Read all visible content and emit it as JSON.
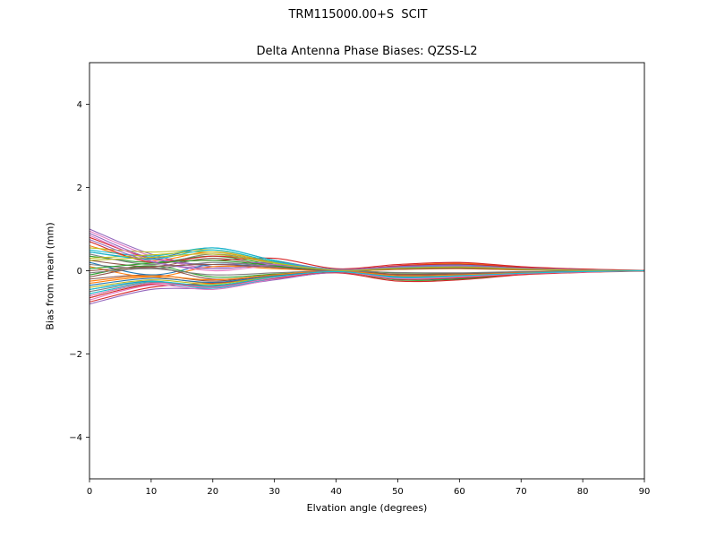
{
  "chart_data": {
    "type": "line",
    "suptitle": "TRM115000.00+S  SCIT",
    "title": "Delta Antenna Phase Biases: QZSS-L2",
    "xlabel": "Elvation angle (degrees)",
    "ylabel": "Bias from mean (mm)",
    "xlim": [
      0,
      90
    ],
    "ylim": [
      -5,
      5
    ],
    "xticks": [
      0,
      10,
      20,
      30,
      40,
      50,
      60,
      70,
      80,
      90
    ],
    "yticks": [
      -4,
      -2,
      0,
      2,
      4
    ],
    "grid": false,
    "legend": "none",
    "x": [
      0,
      10,
      20,
      30,
      40,
      50,
      60,
      70,
      80,
      90
    ],
    "series": [
      {
        "color": "#1f77b4",
        "values": [
          0.45,
          0.3,
          0.55,
          0.25,
          0.02,
          0.1,
          0.15,
          0.08,
          0.03,
          0.0
        ]
      },
      {
        "color": "#ff7f0e",
        "values": [
          0.6,
          0.25,
          0.45,
          0.2,
          0.0,
          0.12,
          0.18,
          0.09,
          0.03,
          0.0
        ]
      },
      {
        "color": "#2ca02c",
        "values": [
          0.35,
          0.2,
          0.35,
          0.15,
          -0.02,
          0.05,
          0.1,
          0.05,
          0.02,
          0.0
        ]
      },
      {
        "color": "#d62728",
        "values": [
          0.8,
          0.3,
          0.25,
          0.3,
          0.05,
          0.15,
          0.2,
          0.1,
          0.04,
          0.01
        ]
      },
      {
        "color": "#9467bd",
        "values": [
          1.0,
          0.4,
          0.1,
          0.18,
          0.03,
          0.08,
          0.12,
          0.06,
          0.02,
          0.0
        ]
      },
      {
        "color": "#8c564b",
        "values": [
          0.25,
          0.1,
          0.3,
          0.12,
          0.0,
          0.06,
          0.08,
          0.04,
          0.01,
          0.0
        ]
      },
      {
        "color": "#e377c2",
        "values": [
          0.95,
          0.35,
          0.05,
          0.15,
          0.02,
          0.1,
          0.14,
          0.07,
          0.02,
          0.0
        ]
      },
      {
        "color": "#7f7f7f",
        "values": [
          0.4,
          0.15,
          0.4,
          0.18,
          0.0,
          0.08,
          0.12,
          0.05,
          0.02,
          0.0
        ]
      },
      {
        "color": "#bcbd22",
        "values": [
          0.55,
          0.45,
          0.5,
          0.22,
          0.02,
          0.05,
          0.1,
          0.06,
          0.02,
          0.0
        ]
      },
      {
        "color": "#17becf",
        "values": [
          0.5,
          0.35,
          0.55,
          0.25,
          0.03,
          0.1,
          0.15,
          0.07,
          0.02,
          0.0
        ]
      },
      {
        "color": "#1f77b4",
        "values": [
          -0.45,
          -0.25,
          -0.4,
          -0.15,
          -0.02,
          -0.2,
          -0.18,
          -0.08,
          -0.03,
          0.0
        ]
      },
      {
        "color": "#ff7f0e",
        "values": [
          -0.3,
          -0.15,
          -0.3,
          -0.12,
          0.0,
          -0.15,
          -0.12,
          -0.06,
          -0.02,
          0.0
        ]
      },
      {
        "color": "#2ca02c",
        "values": [
          -0.6,
          -0.3,
          -0.35,
          -0.18,
          -0.03,
          -0.22,
          -0.2,
          -0.09,
          -0.03,
          0.0
        ]
      },
      {
        "color": "#d62728",
        "values": [
          -0.75,
          -0.4,
          -0.3,
          -0.2,
          -0.05,
          -0.25,
          -0.22,
          -0.1,
          -0.04,
          -0.01
        ]
      },
      {
        "color": "#9467bd",
        "values": [
          -0.8,
          -0.45,
          -0.42,
          -0.22,
          -0.04,
          -0.18,
          -0.15,
          -0.07,
          -0.03,
          0.0
        ]
      },
      {
        "color": "#8c564b",
        "values": [
          -0.2,
          -0.1,
          -0.25,
          -0.1,
          0.0,
          -0.1,
          -0.08,
          -0.04,
          -0.01,
          0.0
        ]
      },
      {
        "color": "#e377c2",
        "values": [
          -0.7,
          -0.35,
          -0.45,
          -0.2,
          -0.03,
          -0.2,
          -0.16,
          -0.08,
          -0.03,
          0.0
        ]
      },
      {
        "color": "#7f7f7f",
        "values": [
          -0.5,
          -0.28,
          -0.38,
          -0.16,
          -0.02,
          -0.18,
          -0.14,
          -0.07,
          -0.02,
          0.0
        ]
      },
      {
        "color": "#bcbd22",
        "values": [
          -0.4,
          -0.22,
          -0.32,
          -0.14,
          -0.01,
          -0.12,
          -0.1,
          -0.05,
          -0.02,
          0.0
        ]
      },
      {
        "color": "#17becf",
        "values": [
          -0.55,
          -0.3,
          -0.42,
          -0.18,
          -0.02,
          -0.16,
          -0.13,
          -0.06,
          -0.02,
          0.0
        ]
      },
      {
        "color": "#1f77b4",
        "values": [
          0.2,
          -0.1,
          0.15,
          0.08,
          0.0,
          0.05,
          0.08,
          0.04,
          0.01,
          0.0
        ]
      },
      {
        "color": "#ff7f0e",
        "values": [
          0.1,
          -0.15,
          0.1,
          0.05,
          -0.01,
          0.03,
          0.05,
          0.02,
          0.01,
          0.0
        ]
      },
      {
        "color": "#2ca02c",
        "values": [
          -0.1,
          0.12,
          -0.15,
          -0.08,
          0.0,
          -0.05,
          -0.06,
          -0.03,
          -0.01,
          0.0
        ]
      },
      {
        "color": "#d62728",
        "values": [
          0.7,
          0.2,
          0.35,
          0.22,
          0.02,
          0.12,
          0.16,
          0.08,
          0.03,
          0.0
        ]
      },
      {
        "color": "#9467bd",
        "values": [
          0.9,
          0.3,
          0.15,
          0.2,
          0.03,
          0.1,
          0.13,
          0.06,
          0.02,
          0.0
        ]
      },
      {
        "color": "#8c564b",
        "values": [
          -0.15,
          0.08,
          -0.2,
          -0.1,
          0.0,
          -0.08,
          -0.07,
          -0.03,
          -0.01,
          0.0
        ]
      },
      {
        "color": "#e377c2",
        "values": [
          0.85,
          0.25,
          0.0,
          0.12,
          0.02,
          0.08,
          0.11,
          0.05,
          0.02,
          0.0
        ]
      },
      {
        "color": "#7f7f7f",
        "values": [
          0.15,
          0.05,
          0.2,
          0.1,
          0.0,
          0.06,
          0.09,
          0.04,
          0.01,
          0.0
        ]
      },
      {
        "color": "#bcbd22",
        "values": [
          0.3,
          0.38,
          0.45,
          0.2,
          0.01,
          0.04,
          0.08,
          0.04,
          0.01,
          0.0
        ]
      },
      {
        "color": "#17becf",
        "values": [
          0.45,
          0.28,
          0.5,
          0.22,
          0.02,
          0.08,
          0.12,
          0.06,
          0.02,
          0.0
        ]
      },
      {
        "color": "#1f77b4",
        "values": [
          -0.35,
          -0.18,
          -0.28,
          -0.12,
          -0.01,
          -0.14,
          -0.11,
          -0.05,
          -0.02,
          0.0
        ]
      },
      {
        "color": "#ff7f0e",
        "values": [
          -0.25,
          -0.12,
          -0.22,
          -0.1,
          0.0,
          -0.12,
          -0.1,
          -0.05,
          -0.02,
          0.0
        ]
      },
      {
        "color": "#2ca02c",
        "values": [
          0.05,
          0.18,
          0.25,
          0.12,
          0.0,
          0.05,
          0.07,
          0.03,
          0.01,
          0.0
        ]
      },
      {
        "color": "#d62728",
        "values": [
          -0.65,
          -0.32,
          -0.36,
          -0.18,
          -0.03,
          -0.2,
          -0.17,
          -0.08,
          -0.03,
          0.0
        ]
      },
      {
        "color": "#9467bd",
        "values": [
          0.75,
          0.22,
          0.05,
          0.14,
          0.02,
          0.09,
          0.12,
          0.06,
          0.02,
          0.0
        ]
      },
      {
        "color": "#8c564b",
        "values": [
          0.0,
          0.1,
          0.15,
          0.08,
          0.0,
          0.04,
          0.06,
          0.03,
          0.01,
          0.0
        ]
      },
      {
        "color": "#e377c2",
        "values": [
          -0.6,
          -0.3,
          -0.4,
          -0.17,
          -0.02,
          -0.19,
          -0.15,
          -0.07,
          -0.03,
          0.0
        ]
      },
      {
        "color": "#7f7f7f",
        "values": [
          -0.05,
          0.05,
          -0.1,
          -0.05,
          0.0,
          -0.04,
          -0.05,
          -0.02,
          -0.01,
          0.0
        ]
      },
      {
        "color": "#bcbd22",
        "values": [
          0.25,
          0.32,
          0.4,
          0.18,
          0.01,
          0.06,
          0.09,
          0.04,
          0.01,
          0.0
        ]
      },
      {
        "color": "#17becf",
        "values": [
          -0.45,
          -0.26,
          -0.36,
          -0.15,
          -0.02,
          -0.15,
          -0.12,
          -0.06,
          -0.02,
          0.0
        ]
      }
    ]
  }
}
